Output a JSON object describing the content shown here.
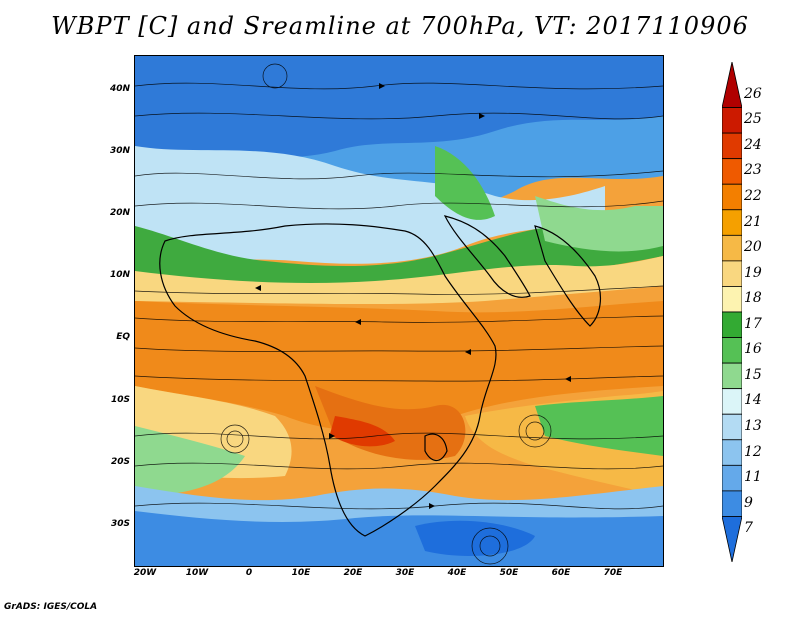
{
  "title": "WBPT [C] and Sreamline at 700hPa, VT: 2017110906",
  "footer": "GrADS: IGES/COLA",
  "lat_labels": [
    "40N",
    "30N",
    "20N",
    "10N",
    "EQ",
    "10S",
    "20S",
    "30S"
  ],
  "lon_labels": [
    "20W",
    "10W",
    "0",
    "10E",
    "20E",
    "30E",
    "40E",
    "50E",
    "60E",
    "70E"
  ],
  "colorbar": {
    "labels": [
      "26",
      "25",
      "24",
      "23",
      "22",
      "21",
      "20",
      "19",
      "18",
      "17",
      "16",
      "15",
      "14",
      "13",
      "12",
      "11",
      "9",
      "7"
    ],
    "colors": [
      "#b00000",
      "#cc1a00",
      "#e03a00",
      "#ef5a00",
      "#f37f00",
      "#f5a000",
      "#f6b946",
      "#f9d780",
      "#fdf3b0",
      "#33aa33",
      "#55c155",
      "#8fd98f",
      "#dbf5f8",
      "#b3dbf3",
      "#8cc4ef",
      "#64a9ea",
      "#3d8ce3",
      "#1e6edc"
    ]
  }
}
